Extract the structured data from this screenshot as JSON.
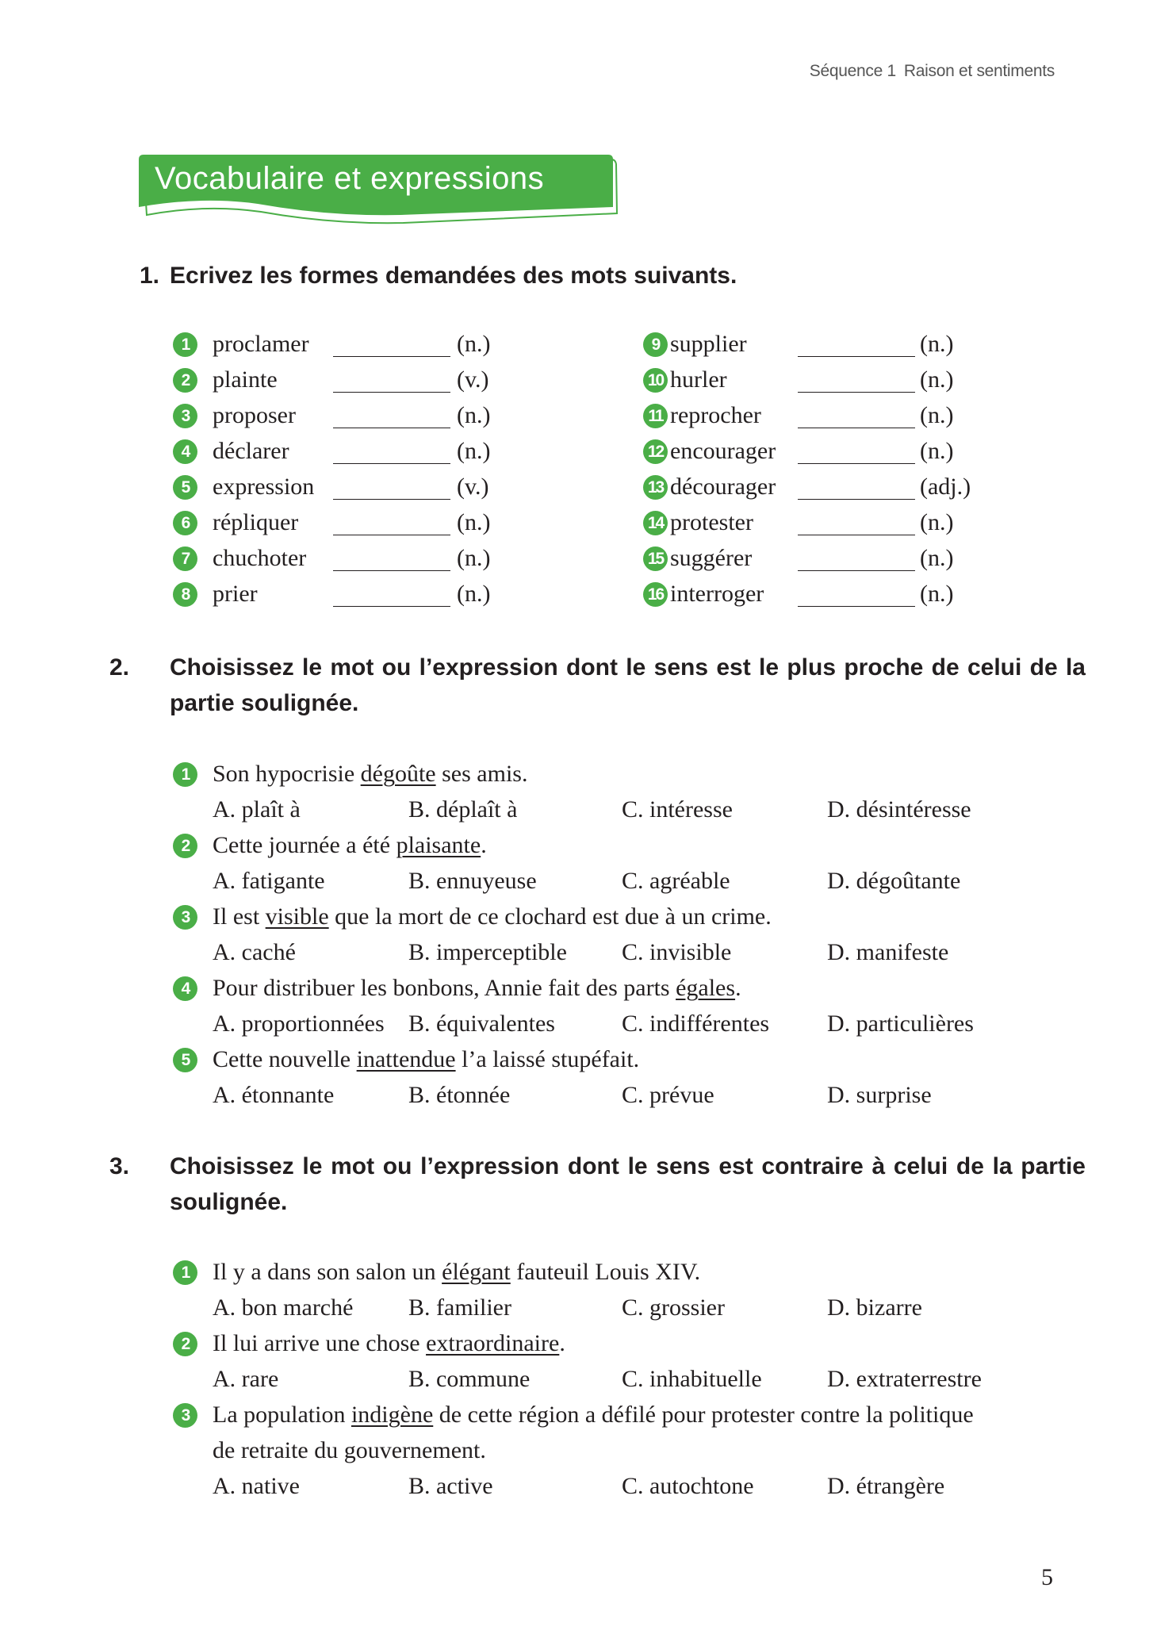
{
  "header": {
    "sequence": "Séquence 1",
    "theme": "Raison et sentiments"
  },
  "banner": {
    "title": "Vocabulaire et expressions",
    "color": "#4aae47"
  },
  "exercise1": {
    "number": "1.",
    "title": "Ecrivez les formes demandées des mots suivants.",
    "items": [
      {
        "n": "1",
        "word": "proclamer",
        "pos": "(n.)"
      },
      {
        "n": "2",
        "word": "plainte",
        "pos": "(v.)"
      },
      {
        "n": "3",
        "word": "proposer",
        "pos": "(n.)"
      },
      {
        "n": "4",
        "word": "déclarer",
        "pos": "(n.)"
      },
      {
        "n": "5",
        "word": "expression",
        "pos": "(v.)"
      },
      {
        "n": "6",
        "word": "répliquer",
        "pos": "(n.)"
      },
      {
        "n": "7",
        "word": "chuchoter",
        "pos": "(n.)"
      },
      {
        "n": "8",
        "word": "prier",
        "pos": "(n.)"
      },
      {
        "n": "9",
        "word": "supplier",
        "pos": "(n.)"
      },
      {
        "n": "10",
        "word": "hurler",
        "pos": "(n.)"
      },
      {
        "n": "11",
        "word": "reprocher",
        "pos": "(n.)"
      },
      {
        "n": "12",
        "word": "encourager",
        "pos": "(n.)"
      },
      {
        "n": "13",
        "word": "décourager",
        "pos": "(adj.)"
      },
      {
        "n": "14",
        "word": "protester",
        "pos": "(n.)"
      },
      {
        "n": "15",
        "word": "suggérer",
        "pos": "(n.)"
      },
      {
        "n": "16",
        "word": "interroger",
        "pos": "(n.)"
      }
    ]
  },
  "exercise2": {
    "number": "2.",
    "title": "Choisissez le mot ou l’expression dont le sens est le plus proche de celui de la partie soulignée.",
    "items": [
      {
        "n": "1",
        "pre": "Son hypocrisie ",
        "u": "dégoûte",
        "post": " ses amis.",
        "options": [
          "A. plaît à",
          "B. déplaît à",
          "C. intéresse",
          "D. désintéresse"
        ]
      },
      {
        "n": "2",
        "pre": "Cette journée a été ",
        "u": "plaisante",
        "post": ".",
        "options": [
          "A. fatigante",
          "B. ennuyeuse",
          "C. agréable",
          "D. dégoûtante"
        ]
      },
      {
        "n": "3",
        "pre": "Il est ",
        "u": "visible",
        "post": " que la mort de ce clochard est due à un crime.",
        "options": [
          "A. caché",
          "B. imperceptible",
          "C. invisible",
          "D. manifeste"
        ]
      },
      {
        "n": "4",
        "pre": "Pour distribuer les bonbons, Annie fait des parts ",
        "u": "égales",
        "post": ".",
        "options": [
          "A. proportionnées",
          "B. équivalentes",
          "C. indifférentes",
          "D. particulières"
        ]
      },
      {
        "n": "5",
        "pre": "Cette nouvelle ",
        "u": "inattendue",
        "post": " l’a laissé stupéfait.",
        "options": [
          "A. étonnante",
          "B. étonnée",
          "C. prévue",
          "D. surprise"
        ]
      }
    ]
  },
  "exercise3": {
    "number": "3.",
    "title": "Choisissez le mot ou l’expression dont le sens est contraire à celui de la partie soulignée.",
    "items": [
      {
        "n": "1",
        "pre": "Il y a dans son salon un ",
        "u": "élégant",
        "post": " fauteuil Louis XIV.",
        "options": [
          "A. bon marché",
          "B. familier",
          "C. grossier",
          "D. bizarre"
        ]
      },
      {
        "n": "2",
        "pre": "Il lui arrive une chose ",
        "u": "extraordinaire",
        "post": ".",
        "options": [
          "A. rare",
          "B. commune",
          "C. inhabituelle",
          "D. extraterrestre"
        ]
      },
      {
        "n": "3",
        "pre": "La population ",
        "u": "indigène",
        "post": " de cette région a défilé pour protester contre la politique",
        "cont": "de retraite du gouvernement.",
        "options": [
          "A. native",
          "B. active",
          "C. autochtone",
          "D. étrangère"
        ]
      }
    ]
  },
  "page_number": "5"
}
